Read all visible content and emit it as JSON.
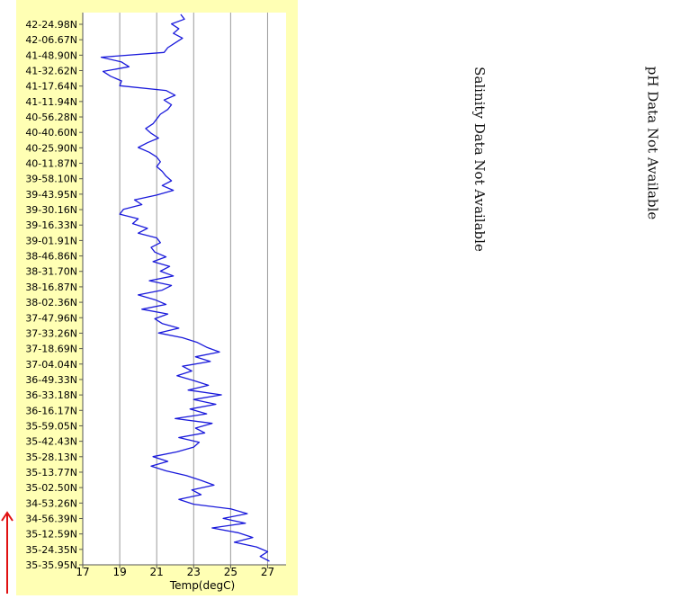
{
  "chart_data": {
    "type": "line",
    "xlabel": "Temp(degC)",
    "xlim": [
      17,
      28
    ],
    "xticks": [
      17,
      19,
      21,
      23,
      25,
      27
    ],
    "gridlines_x": [
      19,
      21,
      23,
      25,
      27
    ],
    "yticks": [
      "42-24.98N",
      "42-06.67N",
      "41-48.90N",
      "41-32.62N",
      "41-17.64N",
      "41-11.94N",
      "40-56.28N",
      "40-40.60N",
      "40-25.90N",
      "40-11.87N",
      "39-58.10N",
      "39-43.95N",
      "39-30.16N",
      "39-16.33N",
      "39-01.91N",
      "38-46.86N",
      "38-31.70N",
      "38-16.87N",
      "38-02.36N",
      "37-47.96N",
      "37-33.26N",
      "37-18.69N",
      "37-04.04N",
      "36-49.33N",
      "36-33.18N",
      "36-16.17N",
      "35-59.05N",
      "35-42.43N",
      "35-28.13N",
      "35-13.77N",
      "35-02.50N",
      "34-53.26N",
      "34-56.39N",
      "35-12.59N",
      "35-24.35N",
      "35-35.95N"
    ],
    "series": [
      {
        "color": "#1a1adb",
        "y_from_top": true,
        "values": [
          22.3,
          22.5,
          21.8,
          22.2,
          21.9,
          22.4,
          22.0,
          21.6,
          21.4,
          18.0,
          19.1,
          19.5,
          18.1,
          18.5,
          19.1,
          19.0,
          21.5,
          22.0,
          21.4,
          21.8,
          21.6,
          21.2,
          21.0,
          20.8,
          20.4,
          20.7,
          21.1,
          20.5,
          20.0,
          20.6,
          21.0,
          21.2,
          21.0,
          21.3,
          21.5,
          21.8,
          21.3,
          21.9,
          21.0,
          19.8,
          20.2,
          19.2,
          19.0,
          20.0,
          19.7,
          20.5,
          20.0,
          21.0,
          21.2,
          20.7,
          20.9,
          21.5,
          20.8,
          21.7,
          21.2,
          21.9,
          20.6,
          21.8,
          21.3,
          20.0,
          20.9,
          21.5,
          20.2,
          21.6,
          20.9,
          21.3,
          22.2,
          21.1,
          22.4,
          23.2,
          23.7,
          24.4,
          23.1,
          23.9,
          22.4,
          22.9,
          22.1,
          23.0,
          23.8,
          22.7,
          24.5,
          23.0,
          24.2,
          22.8,
          23.7,
          22.0,
          24.0,
          23.1,
          23.6,
          22.2,
          23.3,
          23.0,
          22.1,
          20.8,
          21.6,
          20.7,
          21.5,
          22.6,
          23.4,
          24.1,
          22.9,
          23.4,
          22.2,
          23.0,
          25.0,
          25.9,
          24.6,
          25.8,
          24.0,
          25.4,
          26.2,
          25.2,
          26.4,
          27.0,
          26.6,
          27.1
        ]
      }
    ]
  },
  "notes": {
    "salinity": "Salinity Data Not Available",
    "ph": "pH Data Not Available"
  },
  "colors": {
    "panel_bg": "#ffffb4",
    "plot_bg": "#ffffff",
    "grid": "#9a9a9a",
    "line": "#1a1adb",
    "arrow": "#e01010"
  }
}
